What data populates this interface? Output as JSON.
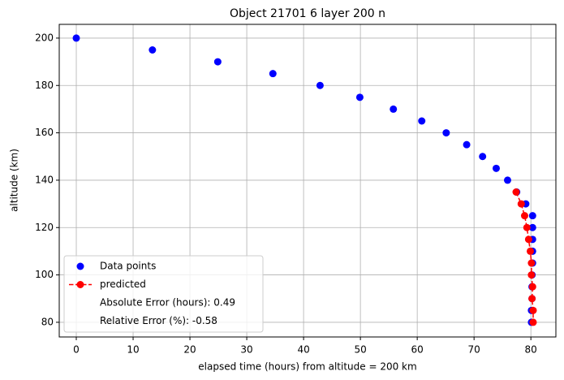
{
  "chart_data": {
    "type": "scatter",
    "title": "Object 21701 6 layer 200 n",
    "x_label": "elapsed time (hours) from altitude = 200 km",
    "y_label": "altitude (km)",
    "xlim": [
      -3,
      84.4
    ],
    "ylim": [
      73.8,
      205.8
    ],
    "xticks": [
      0,
      10,
      20,
      30,
      40,
      50,
      60,
      70,
      80
    ],
    "yticks": [
      80,
      100,
      120,
      140,
      160,
      180,
      200
    ],
    "grid": true,
    "legend_position": "lower left",
    "series": [
      {
        "name": "Data points",
        "color": "#0000ff",
        "type": "scatter",
        "x": [
          0,
          13.4,
          24.9,
          34.6,
          42.9,
          49.9,
          55.8,
          60.8,
          65.1,
          68.7,
          71.5,
          73.9,
          75.9,
          77.5,
          79.1,
          80.3,
          80.3,
          80.3,
          80.3,
          80.3,
          80.2,
          80.2,
          80.2,
          80.1,
          80.1
        ],
        "values": [
          200,
          195,
          190,
          185,
          180,
          175,
          170,
          165,
          160,
          155,
          150,
          145,
          140,
          135,
          130,
          125,
          120,
          115,
          110,
          105,
          100,
          95,
          90,
          85,
          80
        ]
      },
      {
        "name": "predicted",
        "color": "#ff0000",
        "type": "line",
        "linestyle": "dashed",
        "x": [
          77.4,
          78.3,
          78.9,
          79.3,
          79.6,
          79.9,
          80.1,
          80.1,
          80.3,
          80.2,
          80.4,
          80.4
        ],
        "values": [
          135,
          130,
          125,
          120,
          115,
          110,
          105,
          100,
          95,
          90,
          85,
          80
        ]
      }
    ],
    "legend_notes": [
      "Absolute Error (hours): 0.49",
      "Relative Error (%): -0.58"
    ]
  }
}
